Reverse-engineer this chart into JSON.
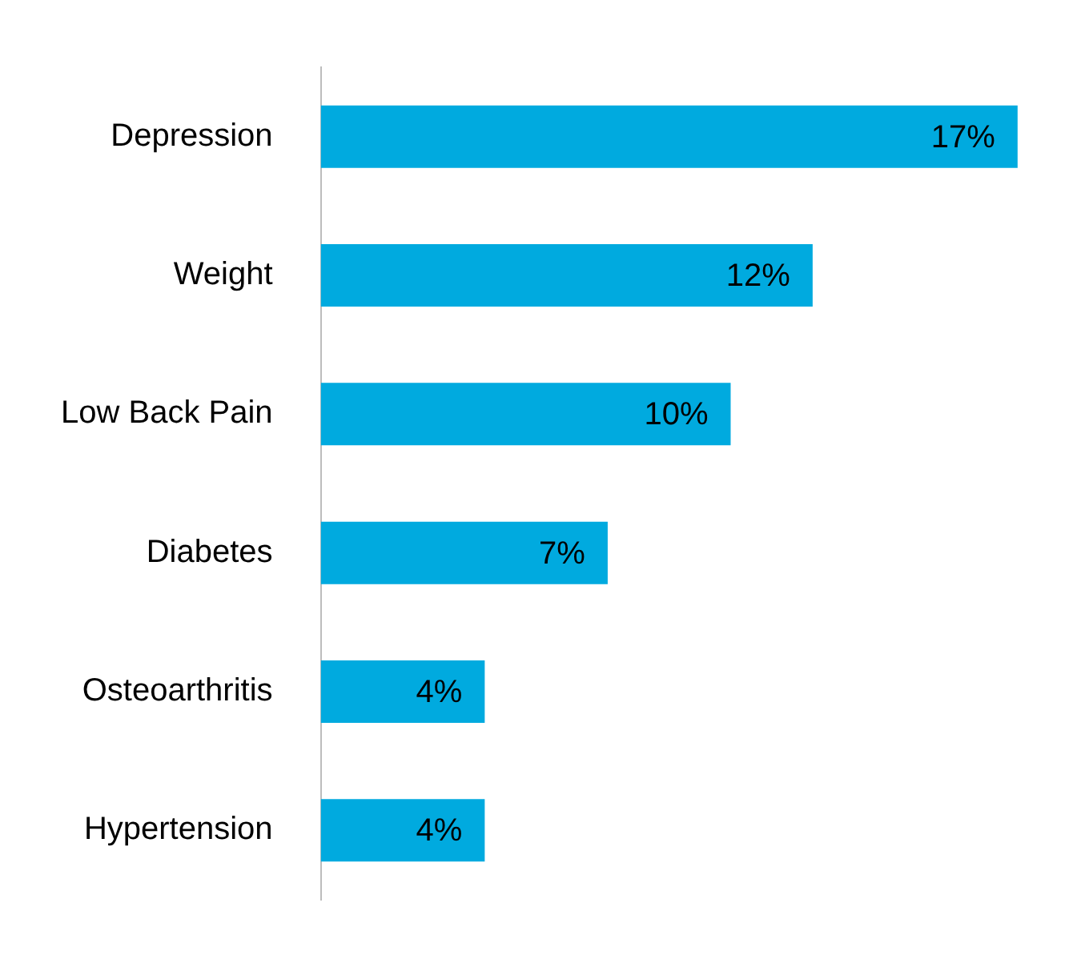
{
  "chart_data": {
    "type": "bar",
    "orientation": "horizontal",
    "categories": [
      "Depression",
      "Weight",
      "Low Back Pain",
      "Diabetes",
      "Osteoarthritis",
      "Hypertension"
    ],
    "values": [
      17,
      12,
      10,
      7,
      4,
      4
    ],
    "value_labels": [
      "17%",
      "12%",
      "10%",
      "7%",
      "4%",
      "4%"
    ],
    "color": "#00aadf",
    "grid": false,
    "legend": false,
    "tick_labels": "y"
  }
}
